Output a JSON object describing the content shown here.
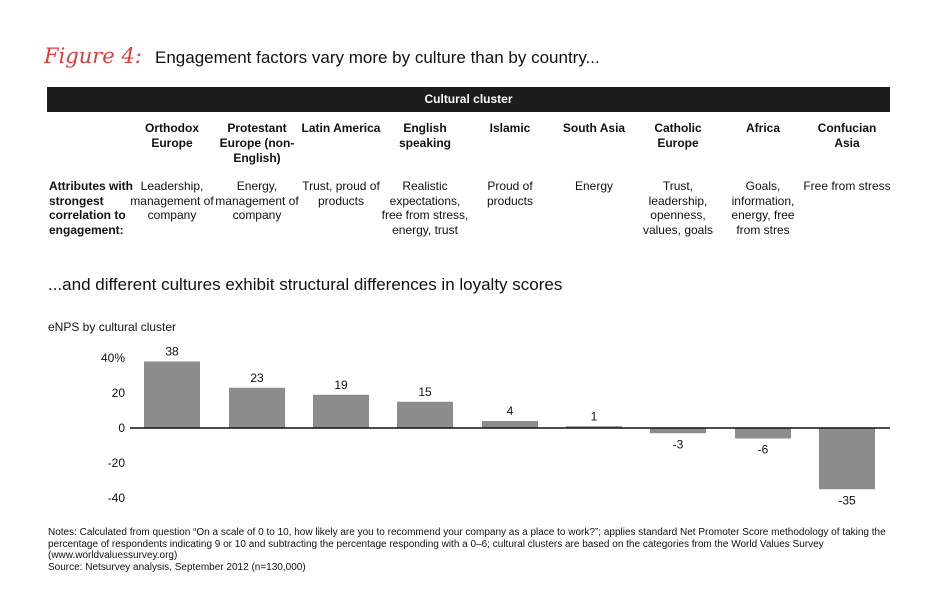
{
  "figure_label": "Figure 4:",
  "title": "Engagement factors vary more by culture than by country...",
  "table": {
    "band_label": "Cultural cluster",
    "row_label": "Attributes with strongest correlation to engagement:",
    "columns": [
      {
        "header": "Orthodox Europe",
        "attributes": "Leadership, management of company"
      },
      {
        "header": "Protestant Europe (non-English)",
        "attributes": "Energy, management of company"
      },
      {
        "header": "Latin America",
        "attributes": "Trust, proud of products"
      },
      {
        "header": "English speaking",
        "attributes": "Realistic expectations, free from stress, energy, trust"
      },
      {
        "header": "Islamic",
        "attributes": "Proud of products"
      },
      {
        "header": "South Asia",
        "attributes": "Energy"
      },
      {
        "header": "Catholic Europe",
        "attributes": "Trust, leadership, openness, values, goals"
      },
      {
        "header": "Africa",
        "attributes": "Goals, information, energy, free from stres"
      },
      {
        "header": "Confucian Asia",
        "attributes": "Free from stress"
      }
    ]
  },
  "subtitle": "...and different cultures exhibit structural differences in loyalty scores",
  "chart_data": {
    "type": "bar",
    "title": "eNPS by cultural cluster",
    "categories": [
      "Orthodox Europe",
      "Protestant Europe (non-English)",
      "Latin America",
      "English speaking",
      "Islamic",
      "South Asia",
      "Catholic Europe",
      "Africa",
      "Confucian Asia"
    ],
    "values": [
      38,
      23,
      19,
      15,
      4,
      1,
      -3,
      -6,
      -35
    ],
    "data_labels": [
      "38",
      "23",
      "19",
      "15",
      "4",
      "1",
      "-3",
      "-6",
      "-35"
    ],
    "ylim": [
      -40,
      40
    ],
    "yticks": [
      {
        "v": 40,
        "label": "40%"
      },
      {
        "v": 20,
        "label": "20"
      },
      {
        "v": 0,
        "label": "0"
      },
      {
        "v": -20,
        "label": "-20"
      },
      {
        "v": -40,
        "label": "-40"
      }
    ],
    "bar_color": "#8c8c8c",
    "grid": false
  },
  "notes": "Notes: Calculated from question “On a scale of 0 to 10, how likely are you to recommend your company as a place to work?”; applies standard Net Promoter Score methodology of taking the percentage of respondents indicating 9 or 10 and subtracting the percentage responding with a 0–6; cultural clusters are based on the categories from the World Values Survey (www.worldvaluessurvey.org)",
  "source": "Source: Netsurvey analysis, September 2012 (n=130,000)"
}
